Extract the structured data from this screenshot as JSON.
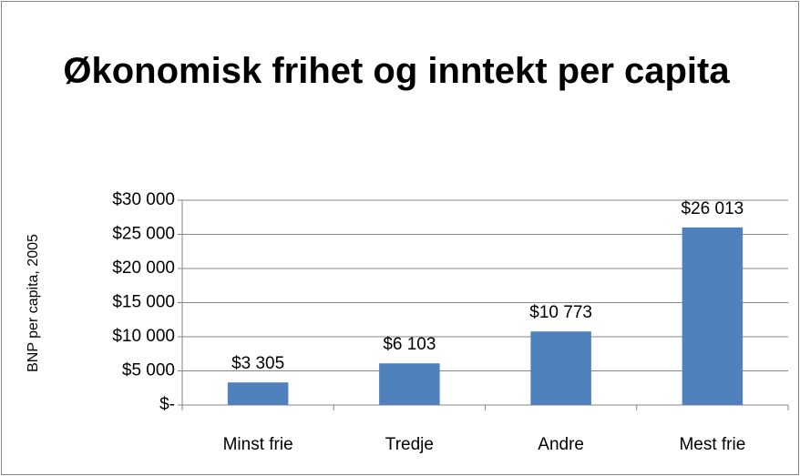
{
  "chart_data": {
    "type": "bar",
    "title": "Økonomisk frihet og inntekt per capita",
    "y_label": "BNP per capita, 2005",
    "categories": [
      "Minst frie",
      "Tredje",
      "Andre",
      "Mest frie"
    ],
    "values": [
      3305,
      6103,
      10773,
      26013
    ],
    "value_labels": [
      "$3 305",
      "$6 103",
      "$10 773",
      "$26 013"
    ],
    "color": "#4f81bd",
    "ylim": [
      0,
      30000
    ],
    "yticks": [
      {
        "value": 0,
        "label": "$-"
      },
      {
        "value": 5000,
        "label": "$5 000"
      },
      {
        "value": 10000,
        "label": "$10 000"
      },
      {
        "value": 15000,
        "label": "$15 000"
      },
      {
        "value": 20000,
        "label": "$20 000"
      },
      {
        "value": 25000,
        "label": "$25 000"
      },
      {
        "value": 30000,
        "label": "$30 000"
      }
    ],
    "grid": true
  }
}
